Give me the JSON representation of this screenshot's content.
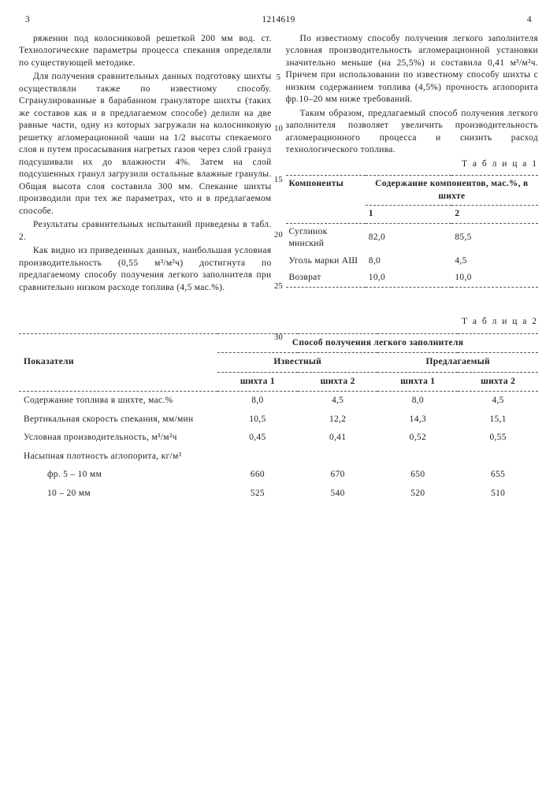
{
  "header": {
    "page_left": "3",
    "doc_no": "1214619",
    "page_right": "4"
  },
  "line_nums": [
    "5",
    "10",
    "15",
    "20",
    "25",
    "30"
  ],
  "col_left_paras": [
    "ряжении под колосниковой решеткой 200 мм вод. ст. Технологические параметры процесса спекания определяли по существующей методике.",
    "Для получения сравнительных данных подготовку шихты осуществляли также по известному способу. Сгранулированные в барабанном грануляторе шихты (таких же составов как и в предлагаемом способе) делили на две равные части, одну из которых загружали на колосниковую решетку агломерационной чаши на 1/2 высоты спекаемого слоя и путем просасывания нагретых газов через слой гранул подсушивали их до влажности 4%. Затем на слой подсушенных гранул загрузили остальные влажные гранулы. Общая высота слоя составила 300 мм. Спекание шихты производили при тех же параметрах, что и в предлагаемом способе.",
    "Результаты сравнительных испытаний приведены в табл. 2.",
    "Как видно из приведенных данных, наибольшая условная производительность (0,55 м³/м²ч) достигнута по предлагаемому способу получения легкого заполнителя при сравнительно низком расходе топлива (4,5 мас.%)."
  ],
  "col_right_paras": [
    "По известному способу получения легкого заполнителя условная производительность агломерационной установки значительно меньше (на 25,5%) и составила 0,41 м³/м²ч. Причем при использовании по известному способу шихты с низким содержанием топлива (4,5%) прочность аглопорита фр.10–20 мм ниже требований.",
    "Таким образом, предлагаемый способ получения легкого заполнителя позволяет увеличить производительность агломерационного процесса и снизить расход технологического топлива."
  ],
  "table1": {
    "caption": "Т а б л и ц а  1",
    "head_left": "Компоненты",
    "head_right": "Содержание компонентов, мас.%, в шихте",
    "sub_heads": [
      "1",
      "2"
    ],
    "rows": [
      {
        "name": "Суглинок минский",
        "v1": "82,0",
        "v2": "85,5"
      },
      {
        "name": "Уголь марки АШ",
        "v1": "8,0",
        "v2": "4,5"
      },
      {
        "name": "Возврат",
        "v1": "10,0",
        "v2": "10,0"
      }
    ]
  },
  "table2": {
    "caption": "Т а б л и ц а  2",
    "head_indicator": "Показатели",
    "head_span": "Способ получения легкого заполнителя",
    "group_a": "Известный",
    "group_b": "Предлагаемый",
    "sub": [
      "шихта 1",
      "шихта 2",
      "шихта 1",
      "шихта 2"
    ],
    "rows": [
      {
        "name": "Содержание топлива в шихте, мас.%",
        "v": [
          "8,0",
          "4,5",
          "8,0",
          "4,5"
        ]
      },
      {
        "name": "Вертикальная скорость спекания, мм/мин",
        "v": [
          "10,5",
          "12,2",
          "14,3",
          "15,1"
        ]
      },
      {
        "name": "Условная производительность, м³/м²ч",
        "v": [
          "0,45",
          "0,41",
          "0,52",
          "0,55"
        ]
      },
      {
        "name": "Насыпная плотность аглопорита, кг/м³",
        "v": [
          "",
          "",
          "",
          ""
        ]
      },
      {
        "name": "фр. 5 – 10 мм",
        "sub": true,
        "v": [
          "660",
          "670",
          "650",
          "655"
        ]
      },
      {
        "name": "10 – 20 мм",
        "sub": true,
        "v": [
          "525",
          "540",
          "520",
          "510"
        ]
      }
    ]
  }
}
